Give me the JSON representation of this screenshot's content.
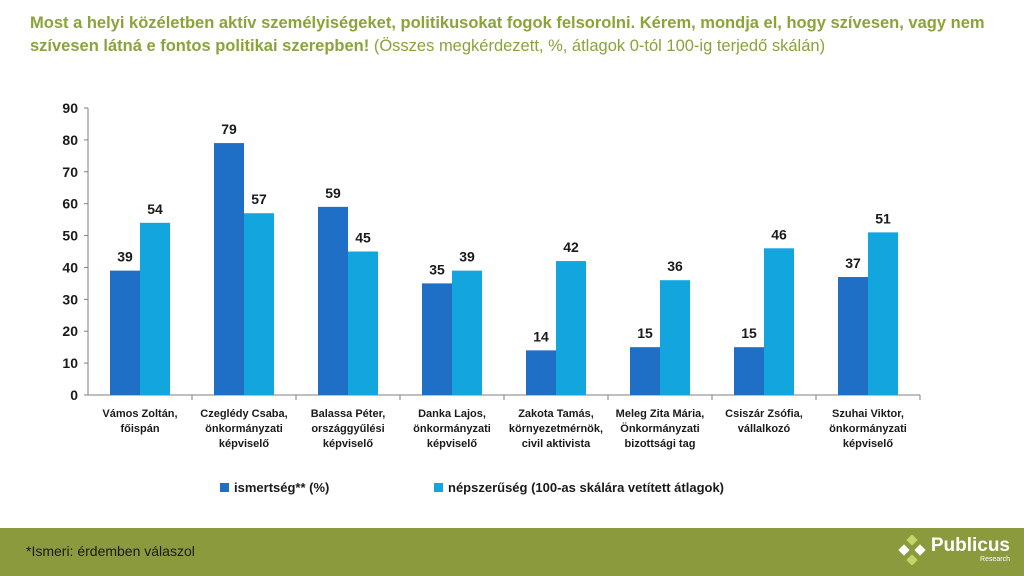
{
  "header": {
    "title_bold": "Most a helyi közéletben aktív személyiségeket, politikusokat fogok felsorolni. Kérem, mondja el, hogy szívesen, vagy nem szívesen látná e fontos politikai szerepben!",
    "title_normal": " (Összes megkérdezett, %, átlagok 0-tól 100-ig terjedő skálán)"
  },
  "footer": {
    "note": "*Ismeri: érdemben válaszol",
    "logo_name": "Publicus",
    "logo_sub": "Research"
  },
  "colors": {
    "series1": "#1f6fc6",
    "series2": "#12a5de",
    "accent": "#8aa33a",
    "footer": "#8a9a3c"
  },
  "chart_data": {
    "type": "bar",
    "categories": [
      [
        "Vámos Zoltán,",
        "főispán"
      ],
      [
        "Czeglédy Csaba,",
        "önkormányzati",
        "képviselő"
      ],
      [
        "Balassa Péter,",
        "országgyűlési",
        "képviselő"
      ],
      [
        "Danka Lajos,",
        "önkormányzati",
        "képviselő"
      ],
      [
        "Zakota Tamás,",
        "környezetmérnök,",
        "civil aktivista"
      ],
      [
        "Meleg Zita Mária,",
        "Önkormányzati",
        "bizottsági tag"
      ],
      [
        "Csiszár Zsófia,",
        "vállalkozó"
      ],
      [
        "Szuhai Viktor,",
        "önkormányzati",
        "képviselő"
      ]
    ],
    "series": [
      {
        "name": "ismertség** (%)",
        "values": [
          39,
          79,
          59,
          35,
          14,
          15,
          15,
          37
        ]
      },
      {
        "name": "népszerűség (100-as skálára vetített átlagok)",
        "values": [
          54,
          57,
          45,
          39,
          42,
          36,
          46,
          51
        ]
      }
    ],
    "ylim": [
      0,
      90
    ],
    "yticks": [
      0,
      10,
      20,
      30,
      40,
      50,
      60,
      70,
      80,
      90
    ],
    "grid": false,
    "legend": "bottom"
  }
}
